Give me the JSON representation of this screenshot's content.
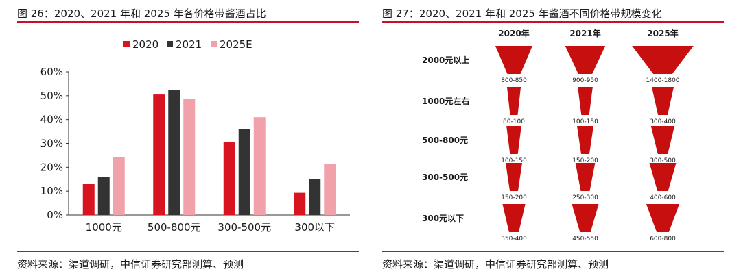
{
  "colors": {
    "accent_red": "#c8102e",
    "s2020": "#d7141f",
    "s2021": "#333333",
    "s2025": "#f0a1aa",
    "funnel": "#c80f0f"
  },
  "left_panel": {
    "title": "图 26：2020、2021 年和 2025 年各价格带酱酒占比",
    "source": "资料来源：渠道调研，中信证券研究部测算、预测"
  },
  "right_panel": {
    "title": "图 27：2020、2021 年和 2025 年酱酒不同价格带规模变化",
    "source": "资料来源：渠道调研，中信证券研究部测算、预测"
  },
  "chart_data": [
    {
      "type": "bar",
      "categories": [
        "1000元",
        "500-800元",
        "300-500元",
        "300以下"
      ],
      "series": [
        {
          "name": "2020",
          "values": [
            13,
            50.5,
            30.5,
            9.3
          ]
        },
        {
          "name": "2021",
          "values": [
            16,
            52.3,
            36,
            15
          ]
        },
        {
          "name": "2025E",
          "values": [
            24.3,
            48.8,
            41,
            21.5
          ]
        }
      ],
      "y_ticks": [
        "0%",
        "10%",
        "20%",
        "30%",
        "40%",
        "50%",
        "60%"
      ],
      "ylim": [
        0,
        60
      ],
      "legend_position": "top"
    },
    {
      "type": "table",
      "columns": [
        "2020年",
        "2021年",
        "2025年"
      ],
      "rows": [
        {
          "label": "2000元以上",
          "values": [
            "800-850",
            "900-950",
            "1400-1800"
          ],
          "size": [
            825,
            925,
            1600
          ]
        },
        {
          "label": "1000元左右",
          "values": [
            "80-100",
            "100-150",
            "300-400"
          ],
          "size": [
            90,
            125,
            350
          ]
        },
        {
          "label": "500-800元",
          "values": [
            "100-150",
            "150-200",
            "300-500"
          ],
          "size": [
            125,
            175,
            400
          ]
        },
        {
          "label": "300-500元",
          "values": [
            "150-200",
            "250-300",
            "400-600"
          ],
          "size": [
            175,
            275,
            500
          ]
        },
        {
          "label": "300元以下",
          "values": [
            "350-400",
            "450-550",
            "600-800"
          ],
          "size": [
            375,
            500,
            700
          ]
        }
      ]
    }
  ]
}
